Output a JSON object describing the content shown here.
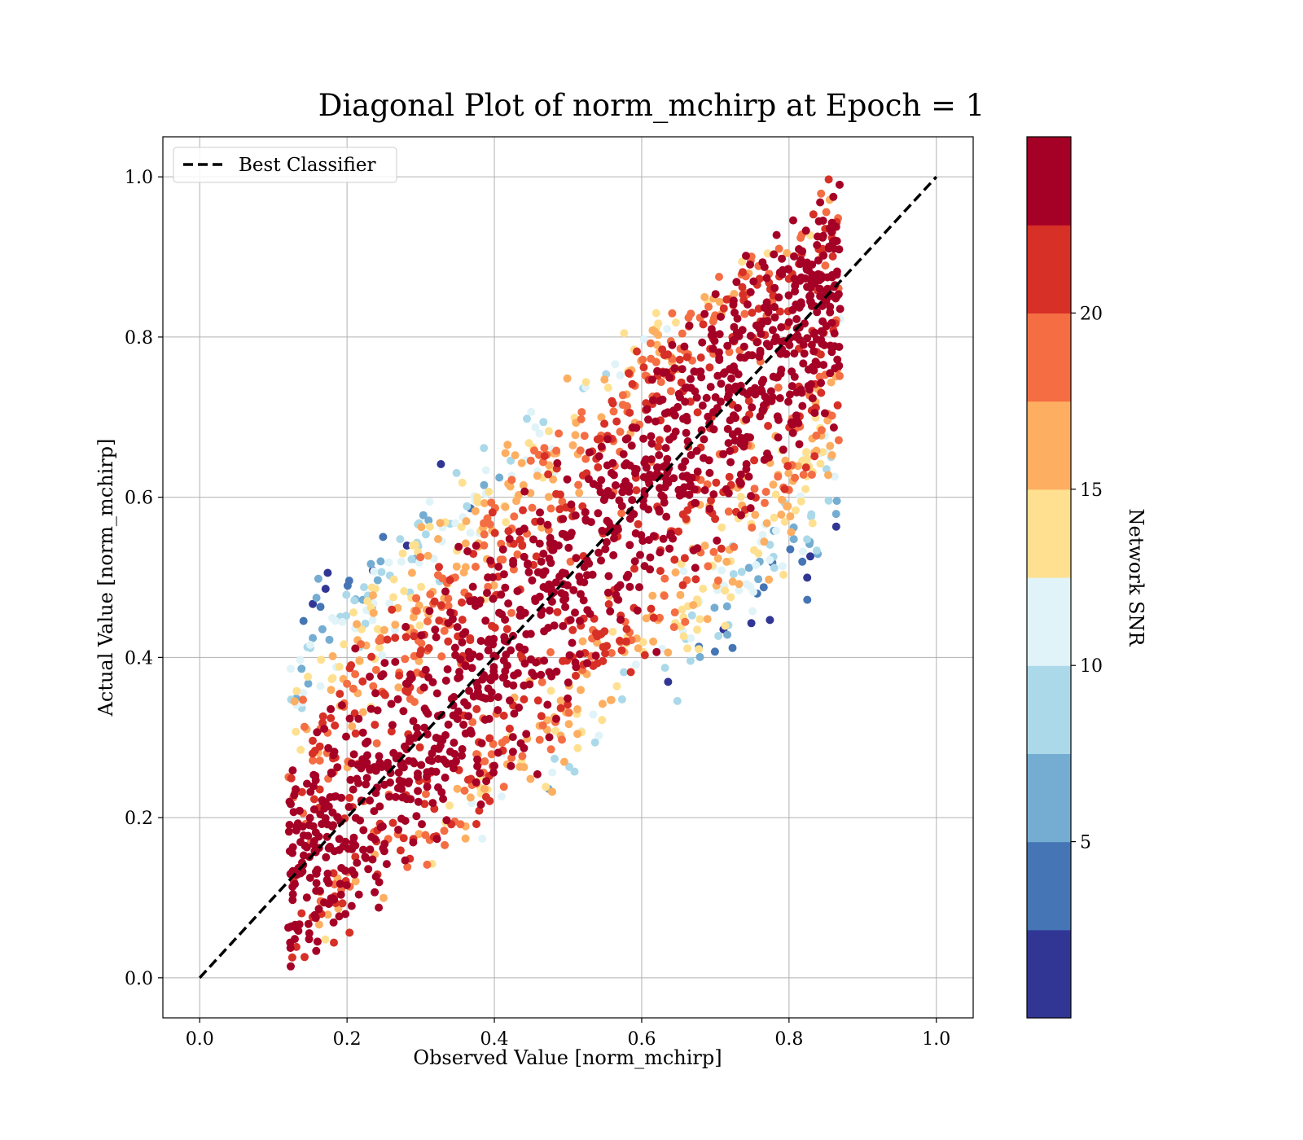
{
  "chart_data": {
    "type": "scatter",
    "title": "Diagonal Plot of norm_mchirp at Epoch = 1",
    "xlabel": "Observed Value [norm_mchirp]",
    "ylabel": "Actual Value [norm_mchirp]",
    "xlim": [
      -0.05,
      1.05
    ],
    "ylim": [
      -0.05,
      1.05
    ],
    "x_ticks": [
      "0.0",
      "0.2",
      "0.4",
      "0.6",
      "0.8",
      "1.0"
    ],
    "x_tick_values": [
      0.0,
      0.2,
      0.4,
      0.6,
      0.8,
      1.0
    ],
    "y_ticks": [
      "0.0",
      "0.2",
      "0.4",
      "0.6",
      "0.8",
      "1.0"
    ],
    "y_tick_values": [
      0.0,
      0.2,
      0.4,
      0.6,
      0.8,
      1.0
    ],
    "grid": true,
    "legend": {
      "placement": "upper-left",
      "entries": [
        {
          "label": "Best Classifier",
          "style": "dashed",
          "color": "#000000"
        }
      ]
    },
    "reference_line": {
      "name": "Best Classifier",
      "x": [
        0.0,
        1.0
      ],
      "y": [
        0.0,
        1.0
      ]
    },
    "scatter_description": "Dense band of points around the diagonal; observed roughly 0.13–0.86, actual 0.0–1.0; high SNR near diagonal, low SNR at off-diagonal edges",
    "colorbar": {
      "label": "Network SNR",
      "range": [
        0,
        25
      ],
      "tick_labels": [
        "5",
        "10",
        "15",
        "20"
      ],
      "tick_values": [
        5,
        10,
        15,
        20
      ],
      "bin_colors": [
        "#313695",
        "#4575b4",
        "#74add1",
        "#abd9e9",
        "#e0f3f8",
        "#fee090",
        "#fdae61",
        "#f46d43",
        "#d73027",
        "#a50026"
      ]
    }
  }
}
